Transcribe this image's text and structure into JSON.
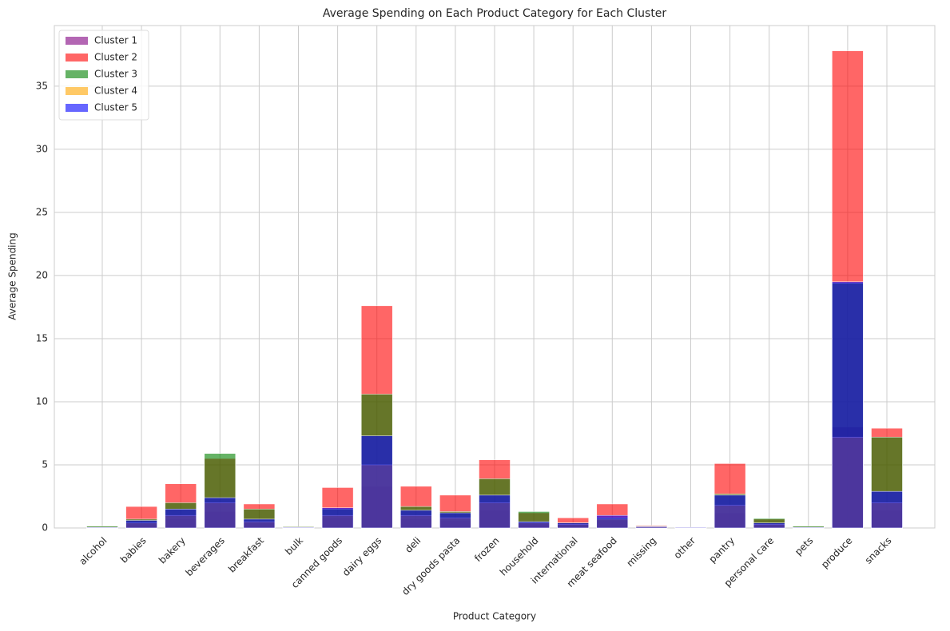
{
  "chart_data": {
    "type": "bar",
    "overlap": true,
    "title": "Average Spending on Each Product Category for Each Cluster",
    "x_label": "Product Category",
    "y_label": "Average Spending",
    "categories": [
      "alcohol",
      "babies",
      "bakery",
      "beverages",
      "breakfast",
      "bulk",
      "canned goods",
      "dairy eggs",
      "deli",
      "dry goods pasta",
      "frozen",
      "household",
      "international",
      "meat seafood",
      "missing",
      "other",
      "pantry",
      "personal care",
      "pets",
      "produce",
      "snacks"
    ],
    "series": [
      {
        "name": "Cluster 1",
        "color": "purple",
        "values": [
          0.05,
          0.3,
          0.7,
          1.3,
          0.4,
          0.05,
          0.8,
          3.3,
          0.7,
          0.6,
          1.4,
          0.3,
          0.2,
          0.6,
          0.15,
          0.05,
          1.2,
          0.2,
          0.05,
          8.0,
          1.4
        ]
      },
      {
        "name": "Cluster 2",
        "color": "red",
        "values": [
          0.1,
          1.7,
          3.5,
          5.5,
          1.9,
          0.1,
          3.2,
          17.6,
          3.3,
          2.6,
          5.4,
          1.2,
          0.8,
          1.9,
          0.2,
          0.05,
          5.1,
          0.7,
          0.1,
          37.8,
          7.9
        ]
      },
      {
        "name": "Cluster 3",
        "color": "green",
        "values": [
          0.15,
          0.7,
          2.0,
          5.9,
          1.5,
          0.1,
          1.5,
          10.6,
          1.7,
          1.3,
          3.9,
          1.3,
          0.4,
          0.8,
          0.15,
          0.05,
          2.7,
          0.75,
          0.15,
          19.4,
          7.2
        ]
      },
      {
        "name": "Cluster 4",
        "color": "orange",
        "values": [
          0.05,
          0.4,
          1.0,
          2.0,
          0.5,
          0.05,
          1.0,
          5.0,
          1.0,
          0.8,
          2.0,
          0.4,
          0.3,
          0.7,
          0.1,
          0.05,
          1.8,
          0.3,
          0.05,
          7.2,
          2.0
        ]
      },
      {
        "name": "Cluster 5",
        "color": "blue",
        "values": [
          0.05,
          0.6,
          1.5,
          2.4,
          0.7,
          0.05,
          1.6,
          7.3,
          1.4,
          1.2,
          2.6,
          0.5,
          0.4,
          1.0,
          0.1,
          0.05,
          2.6,
          0.4,
          0.05,
          19.5,
          2.9
        ]
      }
    ],
    "ylim": [
      0,
      39.8
    ],
    "yticks": [
      0,
      5,
      10,
      15,
      20,
      25,
      30,
      35
    ],
    "grid": true,
    "legend": "upper left"
  }
}
